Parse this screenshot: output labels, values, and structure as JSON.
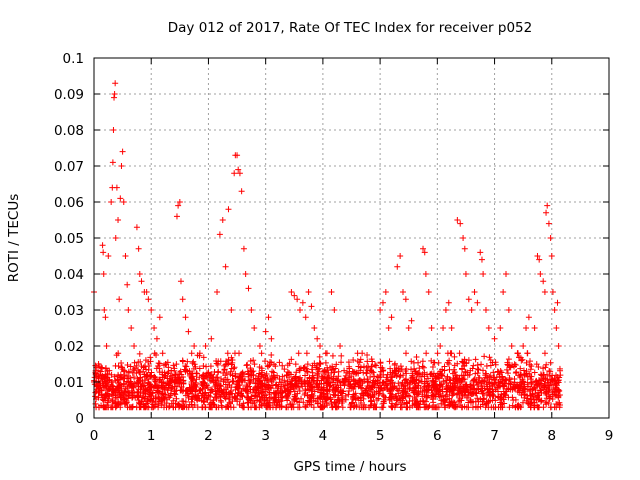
{
  "chart_data": {
    "type": "scatter",
    "title": "Day 012 of 2017, Rate Of TEC Index for receiver p052",
    "xlabel": "GPS time / hours",
    "ylabel": "ROTI / TECUs",
    "xlim": [
      0,
      9
    ],
    "ylim": [
      0,
      0.1
    ],
    "x_ticks": [
      "0",
      "1",
      "2",
      "3",
      "4",
      "5",
      "6",
      "7",
      "8",
      "9"
    ],
    "y_ticks": [
      "0",
      "0.01",
      "0.02",
      "0.03",
      "0.04",
      "0.05",
      "0.06",
      "0.07",
      "0.08",
      "0.09",
      "0.1"
    ],
    "grid": true,
    "marker": "+",
    "color": "#ff0000",
    "series": [
      {
        "points": [
          [
            0.0,
            0.035
          ],
          [
            0.0,
            0.01
          ],
          [
            0.02,
            0.006
          ],
          [
            0.03,
            0.012
          ],
          [
            0.05,
            0.008
          ],
          [
            0.08,
            0.015
          ],
          [
            0.1,
            0.009
          ],
          [
            0.15,
            0.048
          ],
          [
            0.16,
            0.046
          ],
          [
            0.17,
            0.04
          ],
          [
            0.18,
            0.03
          ],
          [
            0.2,
            0.028
          ],
          [
            0.22,
            0.02
          ],
          [
            0.25,
            0.045
          ],
          [
            0.3,
            0.06
          ],
          [
            0.32,
            0.064
          ],
          [
            0.33,
            0.071
          ],
          [
            0.34,
            0.08
          ],
          [
            0.35,
            0.089
          ],
          [
            0.36,
            0.09
          ],
          [
            0.37,
            0.093
          ],
          [
            0.38,
            0.05
          ],
          [
            0.4,
            0.064
          ],
          [
            0.42,
            0.055
          ],
          [
            0.44,
            0.033
          ],
          [
            0.46,
            0.061
          ],
          [
            0.48,
            0.07
          ],
          [
            0.5,
            0.074
          ],
          [
            0.52,
            0.06
          ],
          [
            0.55,
            0.045
          ],
          [
            0.58,
            0.037
          ],
          [
            0.6,
            0.03
          ],
          [
            0.65,
            0.025
          ],
          [
            0.7,
            0.02
          ],
          [
            0.75,
            0.053
          ],
          [
            0.78,
            0.047
          ],
          [
            0.8,
            0.04
          ],
          [
            0.83,
            0.038
          ],
          [
            0.88,
            0.035
          ],
          [
            0.92,
            0.035
          ],
          [
            0.95,
            0.033
          ],
          [
            1.0,
            0.03
          ],
          [
            1.05,
            0.025
          ],
          [
            1.1,
            0.022
          ],
          [
            1.15,
            0.028
          ],
          [
            1.2,
            0.018
          ],
          [
            1.25,
            0.015
          ],
          [
            1.45,
            0.056
          ],
          [
            1.47,
            0.059
          ],
          [
            1.5,
            0.06
          ],
          [
            1.52,
            0.038
          ],
          [
            1.55,
            0.033
          ],
          [
            1.6,
            0.028
          ],
          [
            1.65,
            0.024
          ],
          [
            1.75,
            0.02
          ],
          [
            1.85,
            0.018
          ],
          [
            1.95,
            0.02
          ],
          [
            2.05,
            0.022
          ],
          [
            2.15,
            0.035
          ],
          [
            2.2,
            0.051
          ],
          [
            2.25,
            0.055
          ],
          [
            2.3,
            0.042
          ],
          [
            2.35,
            0.058
          ],
          [
            2.4,
            0.03
          ],
          [
            2.45,
            0.068
          ],
          [
            2.47,
            0.073
          ],
          [
            2.5,
            0.073
          ],
          [
            2.52,
            0.069
          ],
          [
            2.55,
            0.068
          ],
          [
            2.58,
            0.063
          ],
          [
            2.62,
            0.047
          ],
          [
            2.65,
            0.04
          ],
          [
            2.7,
            0.036
          ],
          [
            2.75,
            0.03
          ],
          [
            2.8,
            0.025
          ],
          [
            2.9,
            0.02
          ],
          [
            3.0,
            0.024
          ],
          [
            3.05,
            0.028
          ],
          [
            3.1,
            0.022
          ],
          [
            3.45,
            0.035
          ],
          [
            3.5,
            0.034
          ],
          [
            3.55,
            0.033
          ],
          [
            3.6,
            0.03
          ],
          [
            3.65,
            0.032
          ],
          [
            3.7,
            0.028
          ],
          [
            3.75,
            0.035
          ],
          [
            3.8,
            0.031
          ],
          [
            3.85,
            0.025
          ],
          [
            3.9,
            0.022
          ],
          [
            3.95,
            0.02
          ],
          [
            4.05,
            0.018
          ],
          [
            4.15,
            0.035
          ],
          [
            4.2,
            0.03
          ],
          [
            4.3,
            0.02
          ],
          [
            5.0,
            0.03
          ],
          [
            5.05,
            0.032
          ],
          [
            5.1,
            0.035
          ],
          [
            5.15,
            0.025
          ],
          [
            5.2,
            0.028
          ],
          [
            5.3,
            0.042
          ],
          [
            5.35,
            0.045
          ],
          [
            5.4,
            0.035
          ],
          [
            5.45,
            0.033
          ],
          [
            5.5,
            0.025
          ],
          [
            5.55,
            0.027
          ],
          [
            5.75,
            0.047
          ],
          [
            5.78,
            0.046
          ],
          [
            5.8,
            0.04
          ],
          [
            5.85,
            0.035
          ],
          [
            5.9,
            0.025
          ],
          [
            6.05,
            0.02
          ],
          [
            6.1,
            0.025
          ],
          [
            6.15,
            0.03
          ],
          [
            6.2,
            0.032
          ],
          [
            6.25,
            0.025
          ],
          [
            6.35,
            0.055
          ],
          [
            6.4,
            0.054
          ],
          [
            6.45,
            0.05
          ],
          [
            6.48,
            0.047
          ],
          [
            6.5,
            0.04
          ],
          [
            6.55,
            0.033
          ],
          [
            6.6,
            0.03
          ],
          [
            6.65,
            0.035
          ],
          [
            6.7,
            0.032
          ],
          [
            6.75,
            0.046
          ],
          [
            6.78,
            0.044
          ],
          [
            6.8,
            0.04
          ],
          [
            6.85,
            0.03
          ],
          [
            6.9,
            0.025
          ],
          [
            7.0,
            0.022
          ],
          [
            7.1,
            0.025
          ],
          [
            7.15,
            0.035
          ],
          [
            7.2,
            0.04
          ],
          [
            7.25,
            0.03
          ],
          [
            7.3,
            0.02
          ],
          [
            7.4,
            0.018
          ],
          [
            7.5,
            0.02
          ],
          [
            7.55,
            0.025
          ],
          [
            7.6,
            0.028
          ],
          [
            7.7,
            0.025
          ],
          [
            7.75,
            0.045
          ],
          [
            7.78,
            0.044
          ],
          [
            7.8,
            0.04
          ],
          [
            7.85,
            0.038
          ],
          [
            7.88,
            0.035
          ],
          [
            7.9,
            0.057
          ],
          [
            7.92,
            0.059
          ],
          [
            7.95,
            0.054
          ],
          [
            7.98,
            0.05
          ],
          [
            8.0,
            0.045
          ],
          [
            8.02,
            0.035
          ],
          [
            8.05,
            0.03
          ],
          [
            8.08,
            0.025
          ],
          [
            8.1,
            0.032
          ],
          [
            8.12,
            0.02
          ]
        ],
        "baseline": {
          "x_range": [
            0,
            8.15
          ],
          "y_range": [
            0.003,
            0.018
          ],
          "typical": 0.008,
          "count": 2600,
          "seed": 12017
        }
      }
    ]
  }
}
